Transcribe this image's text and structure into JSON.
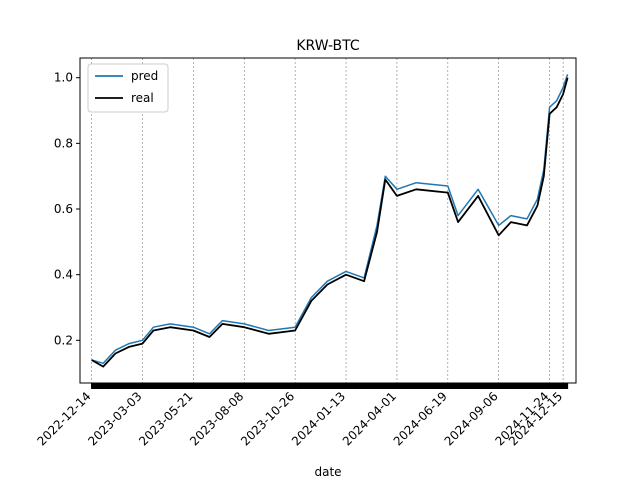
{
  "chart_data": {
    "type": "line",
    "title": "KRW-BTC",
    "xlabel": "date",
    "ylabel": "",
    "xlim": [
      "2022-11-26",
      "2025-01-04"
    ],
    "ylim": [
      0.07,
      1.06
    ],
    "yticks": [
      0.2,
      0.4,
      0.6,
      0.8,
      1.0
    ],
    "ytick_labels": [
      "0.2",
      "0.4",
      "0.6",
      "0.8",
      "1.0"
    ],
    "xticks": [
      "2022-12-14",
      "2023-03-03",
      "2023-05-21",
      "2023-08-08",
      "2023-10-26",
      "2024-01-13",
      "2024-04-01",
      "2024-06-19",
      "2024-09-06",
      "2024-11-24",
      "2024-12-15"
    ],
    "grid": "vertical-dashed",
    "legend": "top-left",
    "series": [
      {
        "name": "pred",
        "color": "#1f77b4",
        "x": [
          "2022-12-14",
          "2023-01-01",
          "2023-01-20",
          "2023-02-10",
          "2023-03-03",
          "2023-03-20",
          "2023-04-15",
          "2023-05-21",
          "2023-06-15",
          "2023-07-05",
          "2023-08-08",
          "2023-09-15",
          "2023-10-26",
          "2023-11-20",
          "2023-12-15",
          "2024-01-13",
          "2024-02-10",
          "2024-03-01",
          "2024-03-14",
          "2024-04-01",
          "2024-05-01",
          "2024-06-19",
          "2024-07-05",
          "2024-08-05",
          "2024-09-06",
          "2024-09-25",
          "2024-10-20",
          "2024-11-05",
          "2024-11-15",
          "2024-11-24",
          "2024-12-05",
          "2024-12-15",
          "2024-12-22"
        ],
        "values": [
          0.14,
          0.13,
          0.17,
          0.19,
          0.2,
          0.24,
          0.25,
          0.24,
          0.22,
          0.26,
          0.25,
          0.23,
          0.24,
          0.33,
          0.38,
          0.41,
          0.39,
          0.55,
          0.7,
          0.66,
          0.68,
          0.67,
          0.58,
          0.66,
          0.55,
          0.58,
          0.57,
          0.63,
          0.72,
          0.91,
          0.93,
          0.97,
          1.01
        ]
      },
      {
        "name": "real",
        "color": "#000000",
        "x": [
          "2022-12-14",
          "2023-01-01",
          "2023-01-20",
          "2023-02-10",
          "2023-03-03",
          "2023-03-20",
          "2023-04-15",
          "2023-05-21",
          "2023-06-15",
          "2023-07-05",
          "2023-08-08",
          "2023-09-15",
          "2023-10-26",
          "2023-11-20",
          "2023-12-15",
          "2024-01-13",
          "2024-02-10",
          "2024-03-01",
          "2024-03-14",
          "2024-04-01",
          "2024-05-01",
          "2024-06-19",
          "2024-07-05",
          "2024-08-05",
          "2024-09-06",
          "2024-09-25",
          "2024-10-20",
          "2024-11-05",
          "2024-11-15",
          "2024-11-24",
          "2024-12-05",
          "2024-12-15",
          "2024-12-22"
        ],
        "values": [
          0.14,
          0.12,
          0.16,
          0.18,
          0.19,
          0.23,
          0.24,
          0.23,
          0.21,
          0.25,
          0.24,
          0.22,
          0.23,
          0.32,
          0.37,
          0.4,
          0.38,
          0.53,
          0.69,
          0.64,
          0.66,
          0.65,
          0.56,
          0.64,
          0.52,
          0.56,
          0.55,
          0.61,
          0.7,
          0.89,
          0.91,
          0.95,
          1.0
        ]
      }
    ]
  }
}
